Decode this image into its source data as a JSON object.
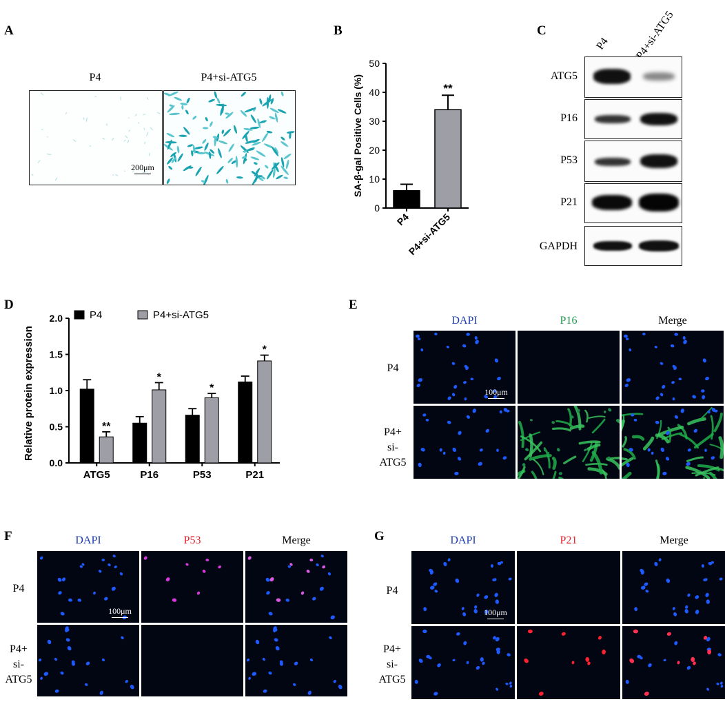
{
  "panel_letters": [
    "A",
    "B",
    "C",
    "D",
    "E",
    "F",
    "G"
  ],
  "panel_a": {
    "captions": [
      "P4",
      "P4+si-ATG5"
    ],
    "scale": "200μm"
  },
  "chart_data": [
    {
      "type": "bar",
      "panel": "B",
      "categories": [
        "P4",
        "P4+si-ATG5"
      ],
      "values": [
        6,
        34
      ],
      "errors": [
        2.2,
        5
      ],
      "significance": [
        "",
        "**"
      ],
      "colors": [
        "#000000",
        "#9e9ea6"
      ],
      "ylabel": "SA-β-gal Positive Cells (%)",
      "xlabel": "",
      "ylim": [
        0,
        50
      ],
      "yticks": [
        0,
        10,
        20,
        30,
        40,
        50
      ],
      "grid": false
    },
    {
      "type": "bar",
      "panel": "D",
      "categories": [
        "ATG5",
        "P16",
        "P53",
        "P21"
      ],
      "series": [
        {
          "name": "P4",
          "color": "#000000",
          "values": [
            1.02,
            0.55,
            0.66,
            1.12
          ],
          "errors": [
            0.13,
            0.09,
            0.09,
            0.08
          ],
          "significance": [
            "",
            "",
            "",
            ""
          ]
        },
        {
          "name": "P4+si-ATG5",
          "color": "#9e9ea6",
          "values": [
            0.36,
            1.01,
            0.9,
            1.41
          ],
          "errors": [
            0.07,
            0.1,
            0.06,
            0.08
          ],
          "significance": [
            "**",
            "*",
            "*",
            "*"
          ]
        }
      ],
      "ylabel": "Relative protein expression",
      "xlabel": "",
      "ylim": [
        0,
        2.0
      ],
      "yticks": [
        "0.0",
        "0.5",
        "1.0",
        "1.5",
        "2.0"
      ],
      "legend": "top",
      "grid": false
    }
  ],
  "panel_c": {
    "lanes": [
      "P4",
      "P4+si-ATG5"
    ],
    "proteins": [
      "ATG5",
      "P16",
      "P53",
      "P21",
      "GAPDH"
    ]
  },
  "panel_e": {
    "columns": [
      "DAPI",
      "P16",
      "Merge"
    ],
    "column_colors": [
      "#1f3fb0",
      "#1a9a4a",
      "#000000"
    ],
    "rows": [
      "P4",
      "P4+\nsi-\nATG5"
    ],
    "scale": "100μm"
  },
  "panel_f": {
    "columns": [
      "DAPI",
      "P53",
      "Merge"
    ],
    "column_colors": [
      "#1f3fb0",
      "#e0202a",
      "#000000"
    ],
    "rows": [
      "P4",
      "P4+\nsi-\nATG5"
    ],
    "scale": "100μm"
  },
  "panel_g": {
    "columns": [
      "DAPI",
      "P21",
      "Merge"
    ],
    "column_colors": [
      "#1f3fb0",
      "#e0202a",
      "#000000"
    ],
    "rows": [
      "P4",
      "P4+\nsi-\nATG5"
    ],
    "scale": "100μm"
  }
}
